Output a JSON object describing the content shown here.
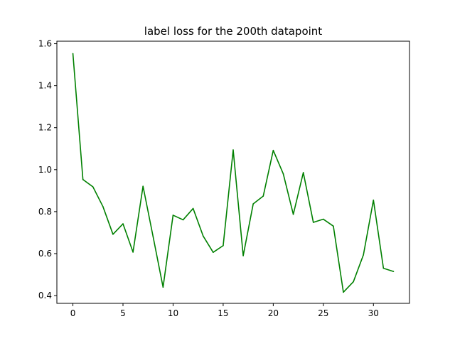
{
  "chart_data": {
    "type": "line",
    "title": "label loss for the 200th datapoint",
    "xlabel": "",
    "ylabel": "",
    "xlim": [
      -1.6,
      33.6
    ],
    "ylim": [
      0.363,
      1.612
    ],
    "grid": false,
    "xticks": [
      0,
      5,
      10,
      15,
      20,
      25,
      30
    ],
    "yticks": [
      0.4,
      0.6,
      0.8,
      1.0,
      1.2,
      1.4,
      1.6
    ],
    "ytick_labels": [
      "0.4",
      "0.6",
      "0.8",
      "1.0",
      "1.2",
      "1.4",
      "1.6"
    ],
    "series": [
      {
        "color": "#008000",
        "x": [
          0,
          1,
          2,
          3,
          4,
          5,
          6,
          7,
          8,
          9,
          10,
          11,
          12,
          13,
          14,
          15,
          16,
          17,
          18,
          19,
          20,
          21,
          22,
          23,
          24,
          25,
          26,
          27,
          28,
          29,
          30,
          31,
          32
        ],
        "values": [
          1.553,
          0.953,
          0.918,
          0.824,
          0.692,
          0.742,
          0.607,
          0.921,
          0.682,
          0.44,
          0.783,
          0.761,
          0.815,
          0.684,
          0.606,
          0.638,
          1.094,
          0.59,
          0.837,
          0.874,
          1.092,
          0.98,
          0.787,
          0.986,
          0.749,
          0.764,
          0.731,
          0.416,
          0.466,
          0.594,
          0.855,
          0.53,
          0.515
        ]
      }
    ]
  }
}
